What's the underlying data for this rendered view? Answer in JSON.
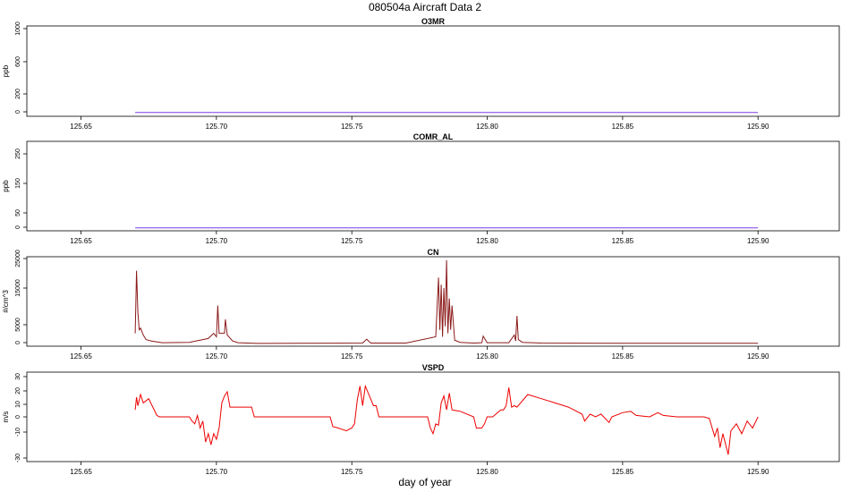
{
  "figure": {
    "title": "080504a   Aircraft Data 2",
    "xlabel": "day of year"
  },
  "colors": {
    "purple": "#7b3fe4",
    "darkred": "#8b1a1a",
    "red": "#ee0000",
    "axis": "#000000"
  },
  "chart_data": [
    {
      "type": "line",
      "title": "O3MR",
      "ylabel": "ppb",
      "xlim": [
        125.63,
        125.93
      ],
      "ylim": [
        -40,
        1040
      ],
      "xticks": [
        "125.65",
        "125.70",
        "125.75",
        "125.80",
        "125.85",
        "125.90"
      ],
      "yticks": [
        "0",
        "200",
        "600",
        "1000"
      ],
      "series": [
        {
          "color": "purple",
          "x": [
            125.67,
            125.9
          ],
          "y": [
            5,
            5
          ]
        }
      ]
    },
    {
      "type": "line",
      "title": "COMR_AL",
      "ylabel": "ppb",
      "xlim": [
        125.63,
        125.93
      ],
      "ylim": [
        -10,
        290
      ],
      "xticks": [
        "125.65",
        "125.70",
        "125.75",
        "125.80",
        "125.85",
        "125.90"
      ],
      "yticks": [
        "0",
        "50",
        "150",
        "250"
      ],
      "series": [
        {
          "color": "purple",
          "x": [
            125.67,
            125.9
          ],
          "y": [
            0,
            0
          ]
        }
      ]
    },
    {
      "type": "line",
      "title": "CN",
      "ylabel": "#/cm^3",
      "xlim": [
        125.63,
        125.93
      ],
      "ylim": [
        -700,
        25000
      ],
      "xticks": [
        "125.65",
        "125.70",
        "125.75",
        "125.80",
        "125.85",
        "125.90"
      ],
      "yticks": [
        "0",
        "5000",
        "15000",
        "25000"
      ],
      "series": [
        {
          "color": "darkred",
          "x": [
            125.67,
            125.6705,
            125.671,
            125.6715,
            125.672,
            125.673,
            125.674,
            125.676,
            125.68,
            125.69,
            125.697,
            125.699,
            125.7,
            125.7005,
            125.701,
            125.703,
            125.7033,
            125.704,
            125.706,
            125.708,
            125.715,
            125.73,
            125.754,
            125.7555,
            125.757,
            125.77,
            125.781,
            125.782,
            125.7825,
            125.783,
            125.7835,
            125.784,
            125.7845,
            125.785,
            125.7855,
            125.786,
            125.7865,
            125.787,
            125.788,
            125.79,
            125.795,
            125.798,
            125.7985,
            125.8,
            125.808,
            125.81,
            125.8105,
            125.811,
            125.8115,
            125.813,
            125.82,
            125.85,
            125.88,
            125.9
          ],
          "y": [
            3000,
            21000,
            9000,
            4000,
            4500,
            2500,
            1200,
            800,
            300,
            400,
            1500,
            3000,
            2000,
            11000,
            3000,
            3000,
            7000,
            2500,
            800,
            300,
            100,
            150,
            200,
            1300,
            200,
            200,
            2000,
            19000,
            4000,
            17000,
            2000,
            16000,
            5000,
            24000,
            3000,
            13000,
            4000,
            11000,
            1000,
            400,
            200,
            300,
            2200,
            300,
            300,
            2500,
            800,
            8000,
            1200,
            400,
            200,
            150,
            150,
            150
          ]
        }
      ]
    },
    {
      "type": "line",
      "title": "VSPD",
      "ylabel": "m/s",
      "xlim": [
        125.63,
        125.93
      ],
      "ylim": [
        -32,
        32
      ],
      "xticks": [
        "125.65",
        "125.70",
        "125.75",
        "125.80",
        "125.85",
        "125.90"
      ],
      "yticks": [
        "-30",
        "-10",
        "0",
        "10",
        "20",
        "30"
      ],
      "series": [
        {
          "color": "red",
          "x": [
            125.67,
            125.6705,
            125.671,
            125.672,
            125.673,
            125.675,
            125.676,
            125.678,
            125.679,
            125.68,
            125.685,
            125.69,
            125.691,
            125.692,
            125.693,
            125.694,
            125.695,
            125.696,
            125.697,
            125.698,
            125.699,
            125.7,
            125.701,
            125.702,
            125.703,
            125.704,
            125.705,
            125.71,
            125.713,
            125.714,
            125.72,
            125.73,
            125.74,
            125.742,
            125.743,
            125.745,
            125.748,
            125.75,
            125.751,
            125.752,
            125.753,
            125.754,
            125.755,
            125.758,
            125.759,
            125.76,
            125.77,
            125.778,
            125.779,
            125.78,
            125.781,
            125.782,
            125.783,
            125.784,
            125.785,
            125.786,
            125.787,
            125.79,
            125.795,
            125.796,
            125.798,
            125.799,
            125.8,
            125.802,
            125.805,
            125.806,
            125.807,
            125.808,
            125.809,
            125.81,
            125.811,
            125.815,
            125.82,
            125.825,
            125.83,
            125.835,
            125.836,
            125.838,
            125.84,
            125.842,
            125.845,
            125.846,
            125.85,
            125.853,
            125.855,
            125.86,
            125.863,
            125.865,
            125.87,
            125.875,
            125.88,
            125.882,
            125.884,
            125.885,
            125.886,
            125.887,
            125.889,
            125.89,
            125.892,
            125.894,
            125.896,
            125.898,
            125.9
          ],
          "y": [
            5,
            14,
            8,
            16,
            10,
            13,
            9,
            1,
            0,
            0,
            0,
            0,
            -3,
            -5,
            1,
            -8,
            -3,
            -18,
            -12,
            -20,
            -12,
            -16,
            -8,
            10,
            15,
            18,
            7,
            7,
            7,
            0,
            0,
            0,
            0,
            0,
            -7,
            -8,
            -10,
            -8,
            -5,
            12,
            22,
            8,
            22,
            8,
            8,
            0,
            0,
            0,
            -8,
            -12,
            -5,
            -6,
            10,
            15,
            5,
            17,
            5,
            4,
            0,
            -8,
            -8,
            -5,
            0,
            0,
            5,
            5,
            8,
            21,
            7,
            8,
            7,
            16,
            13,
            10,
            7,
            2,
            -3,
            2,
            0,
            2,
            -4,
            0,
            3,
            4,
            1,
            0,
            3,
            1,
            0,
            0,
            0,
            -1,
            -14,
            -8,
            -22,
            -12,
            -27,
            -10,
            -5,
            -12,
            -3,
            -8,
            0
          ]
        }
      ]
    }
  ]
}
